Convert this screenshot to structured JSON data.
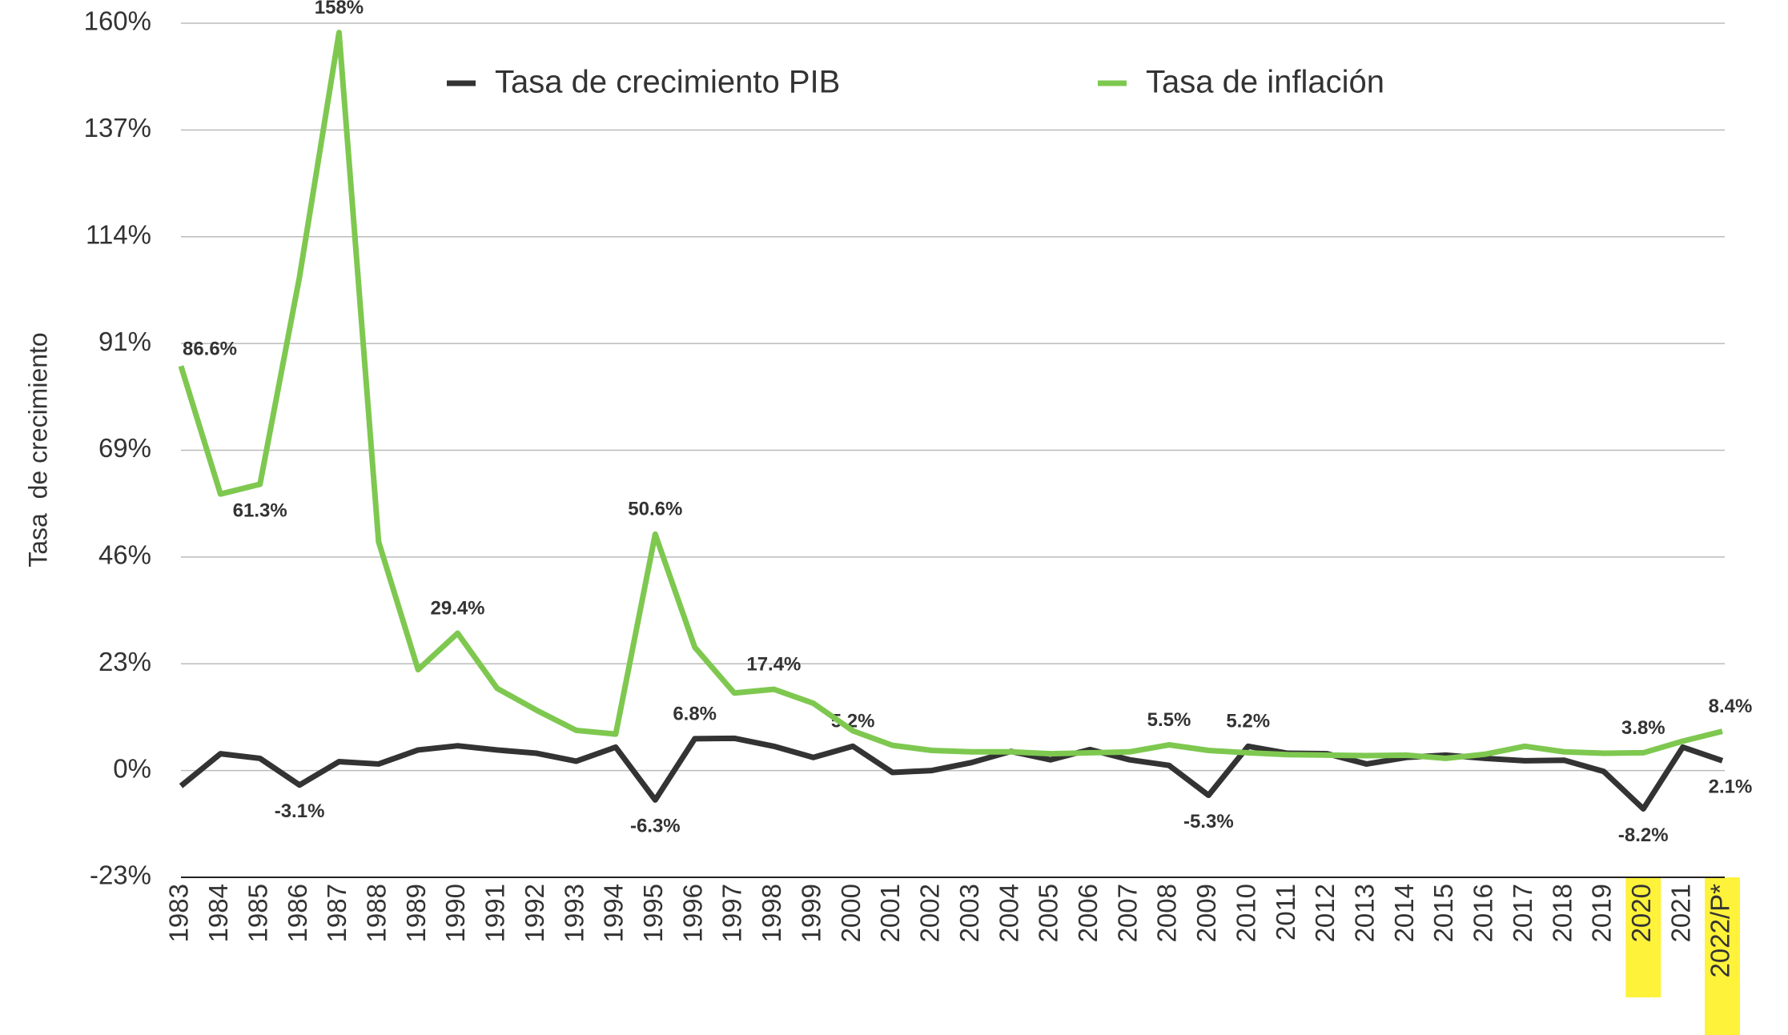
{
  "chart_data": {
    "type": "line",
    "y_axis_label": "Tasa  de crecimiento",
    "categories": [
      "1983",
      "1984",
      "1985",
      "1986",
      "1987",
      "1988",
      "1989",
      "1990",
      "1991",
      "1992",
      "1993",
      "1994",
      "1995",
      "1996",
      "1997",
      "1998",
      "1999",
      "2000",
      "2001",
      "2002",
      "2003",
      "2004",
      "2005",
      "2006",
      "2007",
      "2008",
      "2009",
      "2010",
      "2011",
      "2012",
      "2013",
      "2014",
      "2015",
      "2016",
      "2017",
      "2018",
      "2019",
      "2020",
      "2021",
      "2022/P*"
    ],
    "series": [
      {
        "name": "Tasa de crecimiento PIB",
        "color": "#333333",
        "values": [
          -3.3,
          3.6,
          2.6,
          -3.1,
          1.9,
          1.4,
          4.4,
          5.3,
          4.4,
          3.7,
          2.0,
          5.0,
          -6.3,
          6.8,
          6.9,
          5.2,
          2.8,
          5.2,
          -0.4,
          0.0,
          1.7,
          4.1,
          2.3,
          4.5,
          2.3,
          1.1,
          -5.3,
          5.2,
          3.7,
          3.6,
          1.4,
          2.8,
          3.3,
          2.6,
          2.1,
          2.2,
          -0.2,
          -8.2,
          5.0,
          2.1
        ],
        "value_labels": [
          null,
          null,
          null,
          "-3.1%",
          null,
          null,
          null,
          null,
          null,
          null,
          null,
          null,
          "-6.3%",
          "6.8%",
          null,
          null,
          null,
          "5.2%",
          null,
          null,
          null,
          null,
          null,
          null,
          null,
          null,
          "-5.3%",
          "5.2%",
          null,
          null,
          null,
          null,
          null,
          null,
          null,
          null,
          null,
          "-8.2%",
          null,
          "2.1%"
        ]
      },
      {
        "name": "Tasa de inflación",
        "color": "#7ec850",
        "values": [
          86.6,
          59.2,
          61.3,
          105.7,
          158,
          49,
          21.6,
          29.4,
          17.6,
          12.9,
          8.6,
          7.8,
          50.6,
          26.4,
          16.6,
          17.4,
          14.4,
          8.5,
          5.4,
          4.3,
          4.0,
          4.0,
          3.6,
          3.8,
          4.0,
          5.5,
          4.3,
          3.8,
          3.4,
          3.3,
          3.2,
          3.3,
          2.6,
          3.5,
          5.2,
          4.0,
          3.7,
          3.8,
          6.3,
          8.4
        ],
        "value_labels": [
          "86.6%",
          null,
          "61.3%",
          null,
          "158%",
          null,
          null,
          "29.4%",
          null,
          null,
          null,
          null,
          "50.6%",
          null,
          null,
          "17.4%",
          null,
          null,
          null,
          null,
          null,
          null,
          null,
          null,
          null,
          "5.5%",
          null,
          null,
          null,
          null,
          null,
          null,
          null,
          null,
          null,
          null,
          null,
          "3.8%",
          null,
          "8.4%"
        ]
      }
    ],
    "ylim": [
      -22.86,
      160
    ],
    "yticks": [
      {
        "value": 160,
        "label": "160%"
      },
      {
        "value": 137.14,
        "label": "137%"
      },
      {
        "value": 114.29,
        "label": "114%"
      },
      {
        "value": 91.43,
        "label": "91%"
      },
      {
        "value": 68.57,
        "label": "69%"
      },
      {
        "value": 45.71,
        "label": "46%"
      },
      {
        "value": 22.86,
        "label": "23%"
      },
      {
        "value": 0,
        "label": "0%"
      },
      {
        "value": -22.86,
        "label": "-23%"
      }
    ],
    "grid": true,
    "legend": "top",
    "highlighted_categories": [
      37,
      39
    ],
    "highlight_color": "#fff23a"
  }
}
